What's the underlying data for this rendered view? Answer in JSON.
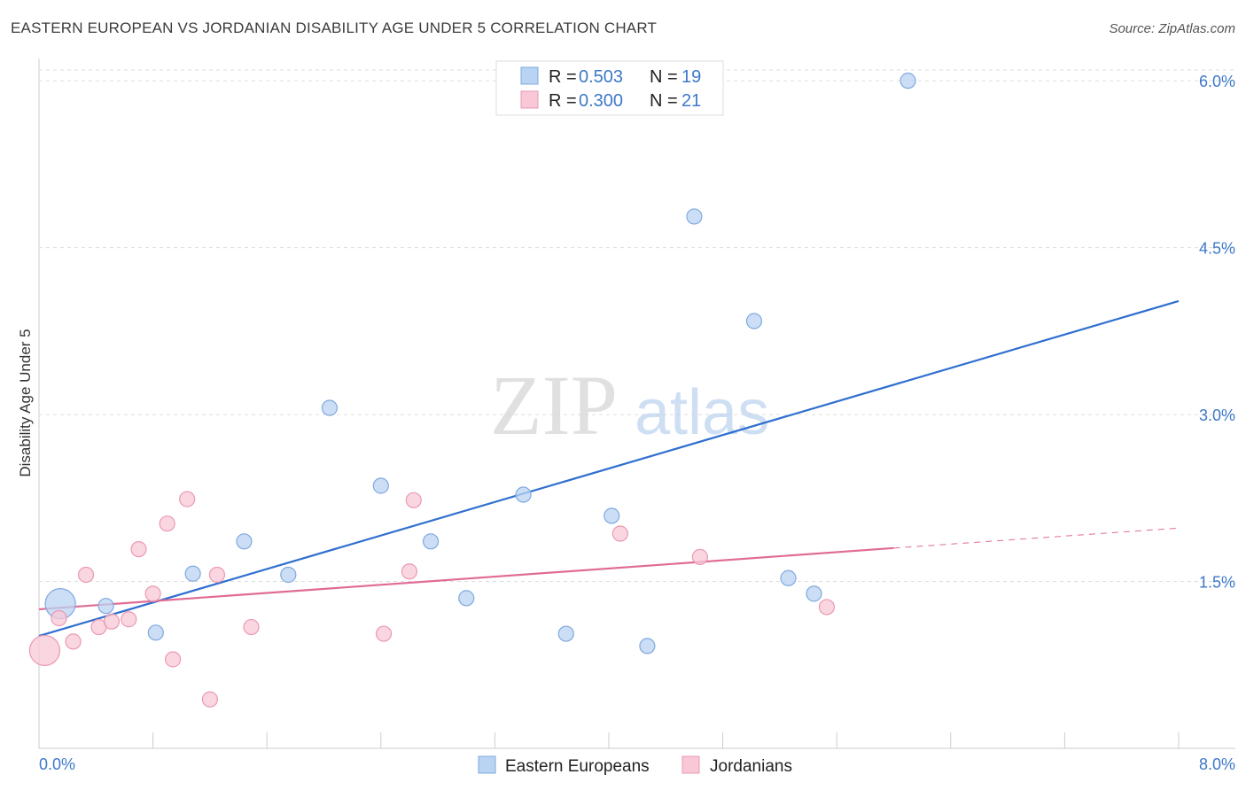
{
  "header": {
    "title": "EASTERN EUROPEAN VS JORDANIAN DISABILITY AGE UNDER 5 CORRELATION CHART",
    "source": "Source: ZipAtlas.com"
  },
  "watermark": {
    "zip": "ZIP",
    "atlas": "atlas"
  },
  "colors": {
    "blue_fill": "#b9d3f3",
    "blue_stroke": "#7fa9de",
    "blue_line": "#2f6fcf",
    "pink_fill": "#f8c8d6",
    "pink_stroke": "#eb99b2",
    "pink_line": "#e06b95",
    "tick_text": "#3d78c9",
    "grid": "#dddddd"
  },
  "legend": {
    "rows": [
      {
        "r_label": "R = ",
        "r_value": "0.503",
        "n_label": "N = ",
        "n_value": "19"
      },
      {
        "r_label": "R = ",
        "r_value": "0.300",
        "n_label": "N = ",
        "n_value": "21"
      }
    ]
  },
  "chart_data": {
    "type": "scatter",
    "title": "EASTERN EUROPEAN VS JORDANIAN DISABILITY AGE UNDER 5 CORRELATION CHART",
    "xlabel": "",
    "ylabel": "Disability Age Under 5",
    "xlim": [
      0,
      8
    ],
    "ylim": [
      0,
      6.2
    ],
    "x_tick_labels": [
      "0.0%",
      "8.0%"
    ],
    "y_ticks": [
      1.5,
      3.0,
      4.5,
      6.0
    ],
    "y_tick_labels": [
      "1.5%",
      "3.0%",
      "4.5%",
      "6.0%"
    ],
    "grid": true,
    "legend_placement": "top-center",
    "series": [
      {
        "name": "Eastern Europeans",
        "color": "#b9d3f3",
        "r": 0.503,
        "n": 19,
        "points": [
          {
            "x": 0.15,
            "y": 1.3,
            "size": "large"
          },
          {
            "x": 0.47,
            "y": 1.28
          },
          {
            "x": 0.82,
            "y": 1.04
          },
          {
            "x": 1.08,
            "y": 1.57
          },
          {
            "x": 1.44,
            "y": 1.86
          },
          {
            "x": 1.75,
            "y": 1.56
          },
          {
            "x": 2.04,
            "y": 3.06
          },
          {
            "x": 2.4,
            "y": 2.36
          },
          {
            "x": 2.75,
            "y": 1.86
          },
          {
            "x": 3.0,
            "y": 1.35
          },
          {
            "x": 3.4,
            "y": 2.28
          },
          {
            "x": 3.7,
            "y": 1.03
          },
          {
            "x": 4.02,
            "y": 2.09
          },
          {
            "x": 4.27,
            "y": 0.92
          },
          {
            "x": 4.6,
            "y": 4.78
          },
          {
            "x": 5.02,
            "y": 3.84
          },
          {
            "x": 5.26,
            "y": 1.53
          },
          {
            "x": 5.44,
            "y": 1.39
          },
          {
            "x": 6.1,
            "y": 6.0
          }
        ],
        "trend": {
          "x0": 0,
          "y0": 1.01,
          "x1": 8,
          "y1": 4.02
        }
      },
      {
        "name": "Jordanians",
        "color": "#f8c8d6",
        "r": 0.3,
        "n": 21,
        "points": [
          {
            "x": 0.04,
            "y": 0.88,
            "size": "large"
          },
          {
            "x": 0.14,
            "y": 1.17
          },
          {
            "x": 0.24,
            "y": 0.96
          },
          {
            "x": 0.33,
            "y": 1.56
          },
          {
            "x": 0.42,
            "y": 1.09
          },
          {
            "x": 0.51,
            "y": 1.14
          },
          {
            "x": 0.63,
            "y": 1.16
          },
          {
            "x": 0.7,
            "y": 1.79
          },
          {
            "x": 0.8,
            "y": 1.39
          },
          {
            "x": 0.9,
            "y": 2.02
          },
          {
            "x": 0.94,
            "y": 0.8
          },
          {
            "x": 1.04,
            "y": 2.24
          },
          {
            "x": 1.2,
            "y": 0.44
          },
          {
            "x": 1.25,
            "y": 1.56
          },
          {
            "x": 1.49,
            "y": 1.09
          },
          {
            "x": 2.42,
            "y": 1.03
          },
          {
            "x": 2.6,
            "y": 1.59
          },
          {
            "x": 2.63,
            "y": 2.23
          },
          {
            "x": 4.08,
            "y": 1.93
          },
          {
            "x": 4.64,
            "y": 1.72
          },
          {
            "x": 5.53,
            "y": 1.27
          }
        ],
        "trend": {
          "x0": 0,
          "y0": 1.25,
          "x1": 6.0,
          "y1": 1.8
        },
        "trend_dashed_to": {
          "x": 8,
          "y": 1.98
        }
      }
    ]
  }
}
